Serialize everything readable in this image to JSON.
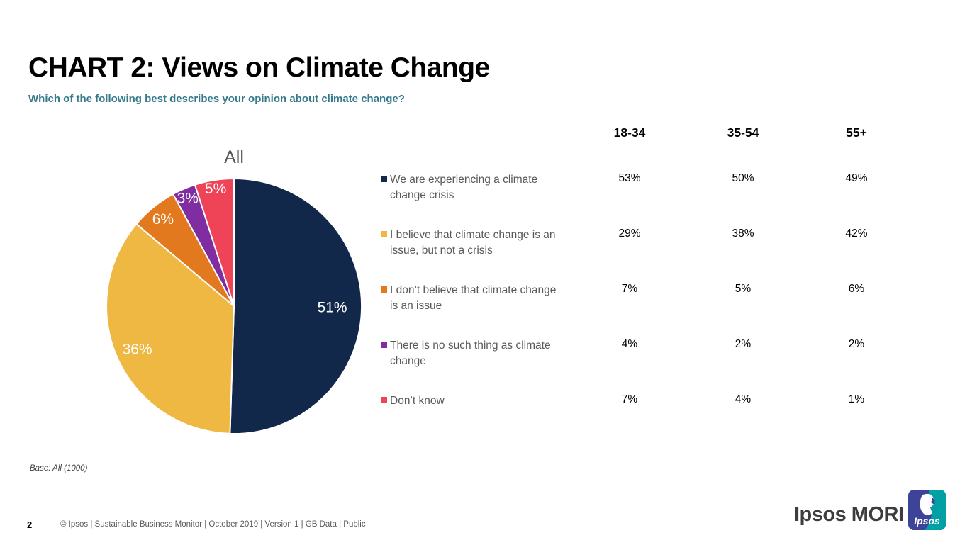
{
  "page": {
    "title": "CHART 2: Views on Climate Change",
    "subtitle": "Which of the following best describes your opinion about climate change?",
    "base_note": "Base: All (1000)",
    "page_number": "2",
    "footer_credit": "© Ipsos | Sustainable Business Monitor | October 2019 | Version 1 | GB Data | Public",
    "brand": {
      "wordmark": "Ipsos MORI",
      "logo_text": "Ipsos",
      "logo_indigo": "#3D4397",
      "logo_teal": "#00A0A5"
    }
  },
  "colors": {
    "title_black": "#000000",
    "subtitle_teal": "#35798A",
    "body_gray": "#595959",
    "label_white": "#ffffff"
  },
  "chart_data": {
    "type": "pie",
    "title": "All",
    "categories": [
      "We are experiencing a climate change crisis",
      "I believe that climate change is an issue, but not a crisis",
      "I don’t believe that climate change is an issue",
      "There is no such thing as climate change",
      "Don’t know"
    ],
    "values": [
      51,
      36,
      6,
      3,
      5
    ],
    "labels": [
      "51%",
      "36%",
      "6%",
      "3%",
      "5%"
    ],
    "colors": [
      "#12284B",
      "#EFB843",
      "#E2791E",
      "#7F2DA0",
      "#EF4458"
    ],
    "start_angle": -90,
    "direction": "clockwise",
    "label_radius": [
      0.77,
      0.83,
      0.88,
      0.92,
      0.93
    ],
    "legend_position": "right",
    "table": {
      "columns": [
        "18-34",
        "35-54",
        "55+"
      ],
      "rows": [
        {
          "label": "We are experiencing a climate change crisis",
          "values": [
            "53%",
            "50%",
            "49%"
          ]
        },
        {
          "label": "I believe that climate change is an issue, but not a crisis",
          "values": [
            "29%",
            "38%",
            "42%"
          ]
        },
        {
          "label": "I don’t believe that climate change is an issue",
          "values": [
            "7%",
            "5%",
            "6%"
          ]
        },
        {
          "label": "There is no such thing as climate change",
          "values": [
            "4%",
            "2%",
            "2%"
          ]
        },
        {
          "label": "Don’t know",
          "values": [
            "7%",
            "4%",
            "1%"
          ]
        }
      ]
    }
  }
}
